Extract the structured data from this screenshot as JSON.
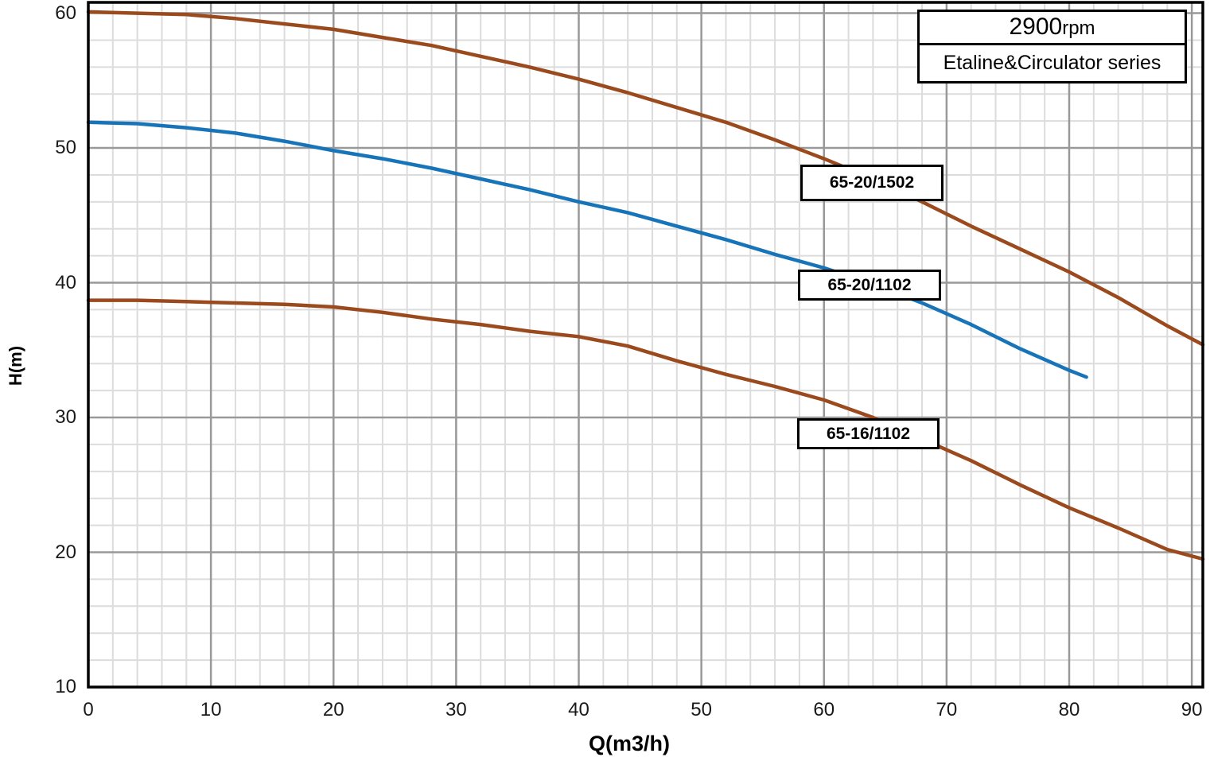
{
  "title_box": {
    "rpm_value": "2900",
    "rpm_suffix": "rpm",
    "series_name": "Etaline&Circulator series"
  },
  "axes": {
    "x_label": "Q(m3/h)",
    "y_label": "H(m)"
  },
  "colors": {
    "grid_minor": "#dcdcdc",
    "grid_major": "#999999",
    "axis": "#000000",
    "curve_brown": "#9b4a1e",
    "curve_blue": "#1774b8"
  },
  "chart_data": {
    "type": "line",
    "title": "2900rpm",
    "subtitle": "Etaline&Circulator series",
    "xlabel": "Q(m3/h)",
    "ylabel": "H(m)",
    "xlim": [
      0,
      90.9
    ],
    "ylim": [
      10,
      60.8
    ],
    "x_ticks": [
      0,
      10,
      20,
      30,
      40,
      50,
      60,
      70,
      80,
      90
    ],
    "y_ticks": [
      10,
      20,
      30,
      40,
      50,
      60
    ],
    "minor_grid_step": 2,
    "grid": "on",
    "legend_position": "labels-on-chart",
    "series": [
      {
        "name": "65-20/1502",
        "color": "#9b4a1e",
        "points": [
          [
            0,
            60.1
          ],
          [
            4,
            60.0
          ],
          [
            8,
            59.9
          ],
          [
            12,
            59.6
          ],
          [
            16,
            59.2
          ],
          [
            20,
            58.8
          ],
          [
            24,
            58.2
          ],
          [
            28,
            57.6
          ],
          [
            32,
            56.8
          ],
          [
            36,
            56.0
          ],
          [
            40,
            55.1
          ],
          [
            44,
            54.1
          ],
          [
            48,
            53.0
          ],
          [
            52,
            51.9
          ],
          [
            56,
            50.6
          ],
          [
            60,
            49.2
          ],
          [
            64,
            47.7
          ],
          [
            68,
            46.0
          ],
          [
            72,
            44.2
          ],
          [
            76,
            42.5
          ],
          [
            80,
            40.8
          ],
          [
            84,
            38.9
          ],
          [
            88,
            36.8
          ],
          [
            90.9,
            35.4
          ]
        ]
      },
      {
        "name": "65-20/1102",
        "color": "#1774b8",
        "points": [
          [
            0,
            51.9
          ],
          [
            4,
            51.8
          ],
          [
            8,
            51.5
          ],
          [
            12,
            51.1
          ],
          [
            16,
            50.5
          ],
          [
            20,
            49.8
          ],
          [
            24,
            49.2
          ],
          [
            28,
            48.5
          ],
          [
            32,
            47.7
          ],
          [
            36,
            46.9
          ],
          [
            40,
            46.0
          ],
          [
            44,
            45.2
          ],
          [
            48,
            44.2
          ],
          [
            52,
            43.2
          ],
          [
            56,
            42.1
          ],
          [
            60,
            41.1
          ],
          [
            64,
            39.9
          ],
          [
            68,
            38.5
          ],
          [
            72,
            36.9
          ],
          [
            76,
            35.1
          ],
          [
            80,
            33.5
          ],
          [
            81.4,
            33.0
          ]
        ]
      },
      {
        "name": "65-16/1102",
        "color": "#9b4a1e",
        "points": [
          [
            0,
            38.7
          ],
          [
            4,
            38.7
          ],
          [
            8,
            38.6
          ],
          [
            12,
            38.5
          ],
          [
            16,
            38.4
          ],
          [
            20,
            38.2
          ],
          [
            24,
            37.8
          ],
          [
            28,
            37.3
          ],
          [
            32,
            36.9
          ],
          [
            36,
            36.4
          ],
          [
            40,
            36.0
          ],
          [
            44,
            35.3
          ],
          [
            48,
            34.2
          ],
          [
            52,
            33.2
          ],
          [
            56,
            32.3
          ],
          [
            60,
            31.3
          ],
          [
            64,
            30.0
          ],
          [
            68,
            28.4
          ],
          [
            72,
            26.8
          ],
          [
            76,
            25.0
          ],
          [
            80,
            23.3
          ],
          [
            84,
            21.8
          ],
          [
            88,
            20.2
          ],
          [
            90.9,
            19.5
          ]
        ]
      }
    ]
  }
}
